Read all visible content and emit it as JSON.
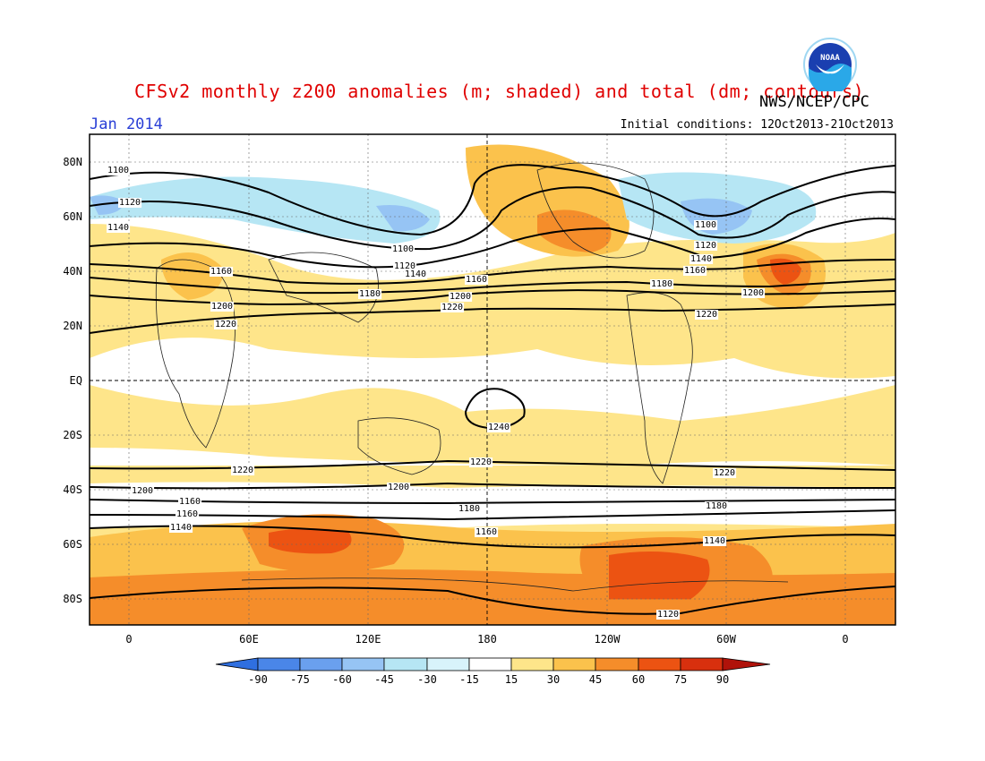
{
  "title": "CFSv2 monthly z200 anomalies (m; shaded) and total (dm; contours)",
  "agency": "NWS/NCEP/CPC",
  "month": "Jan 2014",
  "initial_conditions": "Initial conditions: 12Oct2013-21Oct2013",
  "logo_text": "NOAA",
  "lat_labels": [
    "80N",
    "60N",
    "40N",
    "20N",
    "EQ",
    "20S",
    "40S",
    "60S",
    "80S"
  ],
  "lon_labels": [
    "0",
    "60E",
    "120E",
    "180",
    "120W",
    "60W",
    "0"
  ],
  "colorbar": {
    "labels": [
      "-90",
      "-75",
      "-60",
      "-45",
      "-30",
      "-15",
      "15",
      "30",
      "45",
      "60",
      "75",
      "90"
    ],
    "colors": [
      "#2f6fe0",
      "#4a86e8",
      "#6aa0ee",
      "#96c4f4",
      "#b6e6f4",
      "#ffffff",
      "#fee58a",
      "#fbc24c",
      "#f58d2a",
      "#ec5312",
      "#c81c0a"
    ]
  },
  "contour_labels": {
    "c1100a": "1100",
    "c1100b": "1100",
    "c1100c": "1100",
    "c1120a": "1120",
    "c1120b": "1120",
    "c1120c": "1120",
    "c1120d": "1120",
    "c1140a": "1140",
    "c1140b": "1140",
    "c1140c": "1140",
    "c1140d": "1140",
    "c1140e": "1140",
    "c1160a": "1160",
    "c1160b": "1160",
    "c1160c": "1160",
    "c1160d": "1160",
    "c1160e": "1160",
    "c1160f": "1160",
    "c1180a": "1180",
    "c1180b": "1180",
    "c1180c": "1180",
    "c1180d": "1180",
    "c1200a": "1200",
    "c1200b": "1200",
    "c1200c": "1200",
    "c1200d": "1200",
    "c1200e": "1200",
    "c1220a": "1220",
    "c1220b": "1220",
    "c1220c": "1220",
    "c1220d": "1220",
    "c1220e": "1220",
    "c1220f": "1220",
    "c1240a": "1240"
  }
}
